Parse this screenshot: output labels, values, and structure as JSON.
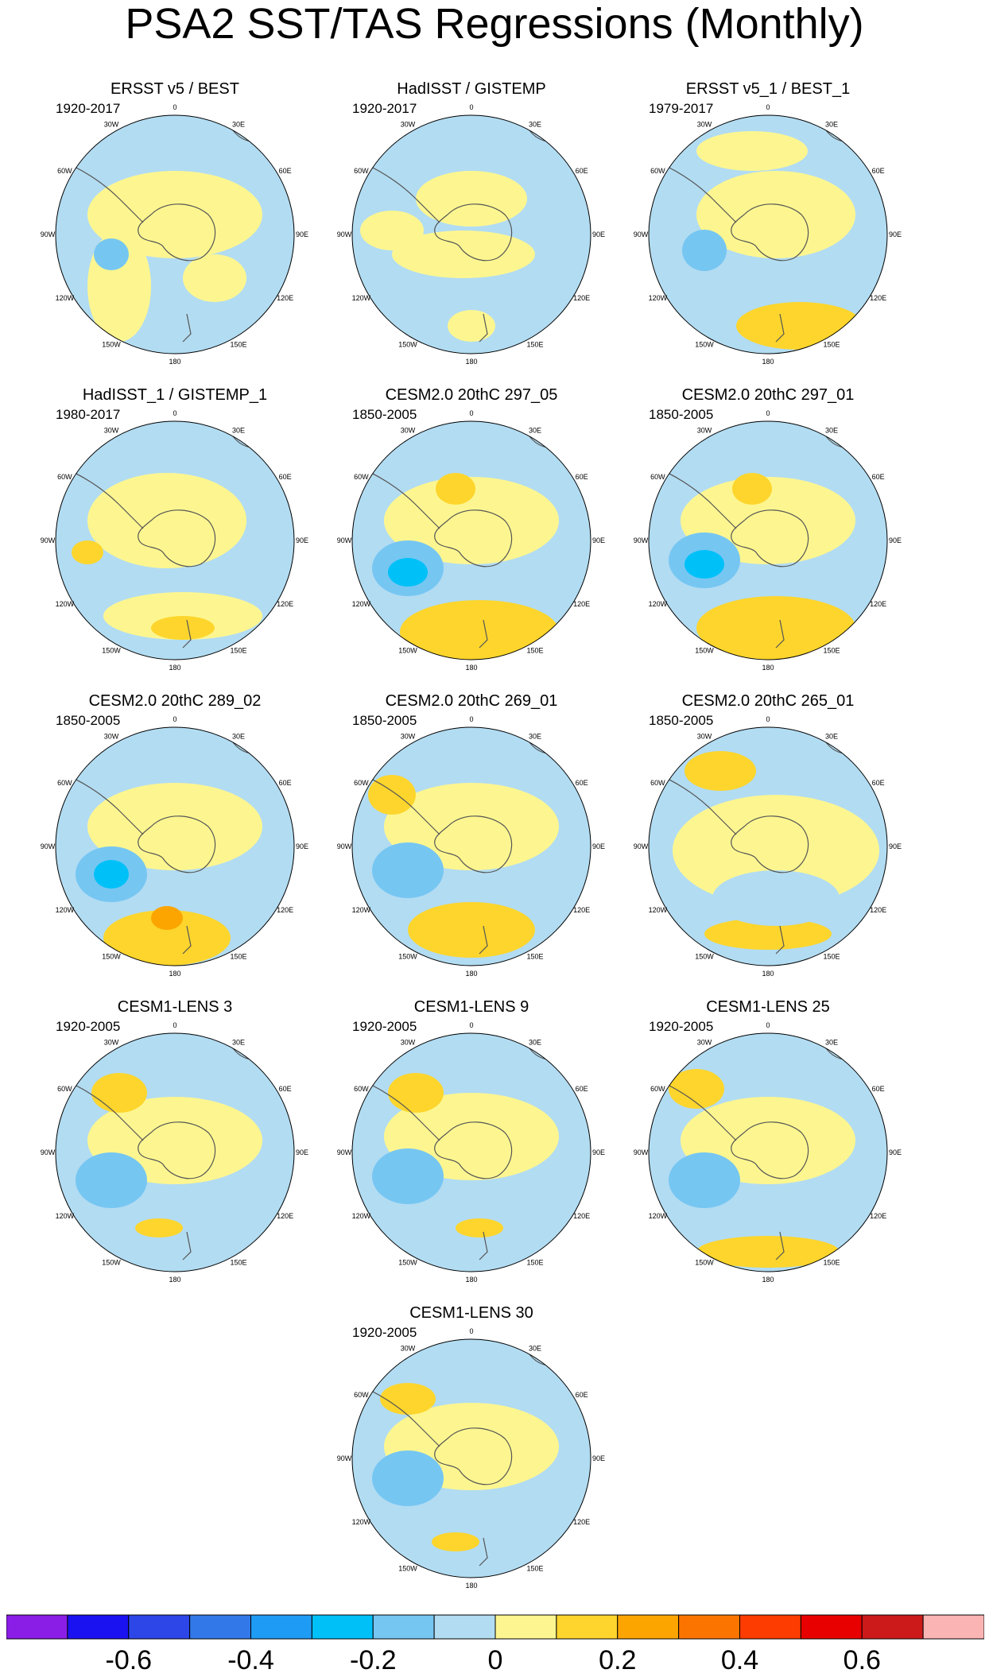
{
  "chart_data": {
    "type": "map",
    "title": "PSA2 SST/TAS Regressions (Monthly)",
    "projection": "south-polar-stereographic",
    "longitude_labels": [
      "0",
      "30E",
      "60E",
      "90E",
      "120E",
      "150E",
      "180",
      "150W",
      "120W",
      "90W",
      "60W",
      "30W"
    ],
    "panels": [
      {
        "title": "ERSST v5 / BEST",
        "period": "1920-2017"
      },
      {
        "title": "HadISST / GISTEMP",
        "period": "1920-2017"
      },
      {
        "title": "ERSST v5_1 / BEST_1",
        "period": "1979-2017"
      },
      {
        "title": "HadISST_1 / GISTEMP_1",
        "period": "1980-2017"
      },
      {
        "title": "CESM2.0 20thC 297_05",
        "period": "1850-2005"
      },
      {
        "title": "CESM2.0 20thC 297_01",
        "period": "1850-2005"
      },
      {
        "title": "CESM2.0 20thC 289_02",
        "period": "1850-2005"
      },
      {
        "title": "CESM2.0 20thC 269_01",
        "period": "1850-2005"
      },
      {
        "title": "CESM2.0 20thC 265_01",
        "period": "1850-2005"
      },
      {
        "title": "CESM1-LENS 3",
        "period": "1920-2005"
      },
      {
        "title": "CESM1-LENS 9",
        "period": "1920-2005"
      },
      {
        "title": "CESM1-LENS 25",
        "period": "1920-2005"
      },
      {
        "title": "CESM1-LENS 30",
        "period": "1920-2005"
      }
    ],
    "colorbar": {
      "colors": [
        "#8a1ee6",
        "#1a12f0",
        "#2c46e8",
        "#3378e8",
        "#1e9bf5",
        "#00c0f8",
        "#76c6f2",
        "#b2dcf2",
        "#fdf690",
        "#fdd52c",
        "#fca500",
        "#fc7400",
        "#fc3c00",
        "#e80000",
        "#cc1a1a",
        "#fbb4b4"
      ],
      "tick_labels": [
        "-0.6",
        "-0.4",
        "-0.2",
        "0",
        "0.2",
        "0.4",
        "0.6"
      ]
    }
  }
}
